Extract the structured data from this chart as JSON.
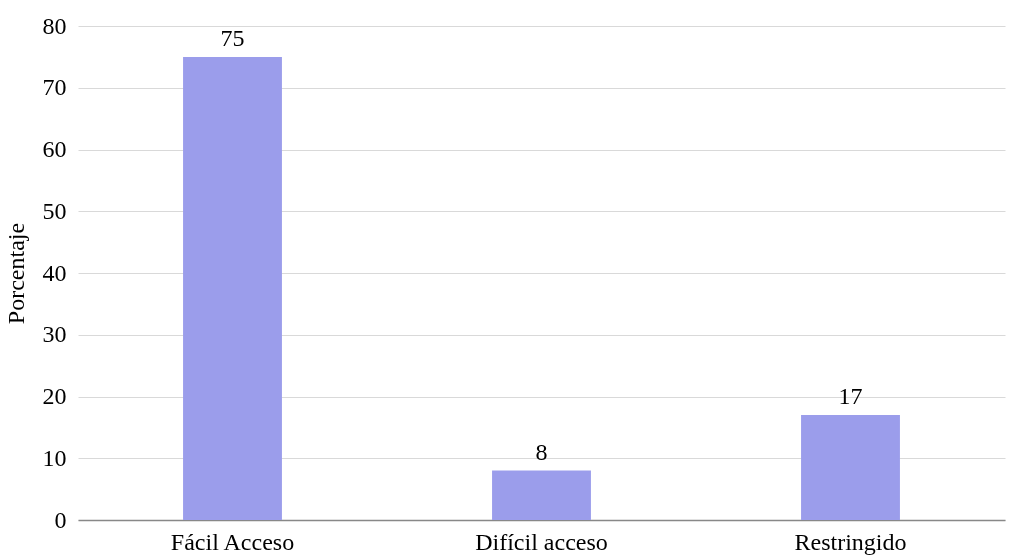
{
  "chart_data": {
    "type": "bar",
    "ylabel": "Porcentaje",
    "categories": [
      "Fácil Acceso",
      "Difícil acceso",
      "Restringido"
    ],
    "values": [
      75,
      8,
      17
    ],
    "color": "#9b9deb",
    "ylim": [
      0,
      80
    ],
    "yticks": [
      0,
      10,
      20,
      30,
      40,
      50,
      60,
      70,
      80
    ],
    "grid": "y",
    "data_labels": true
  }
}
